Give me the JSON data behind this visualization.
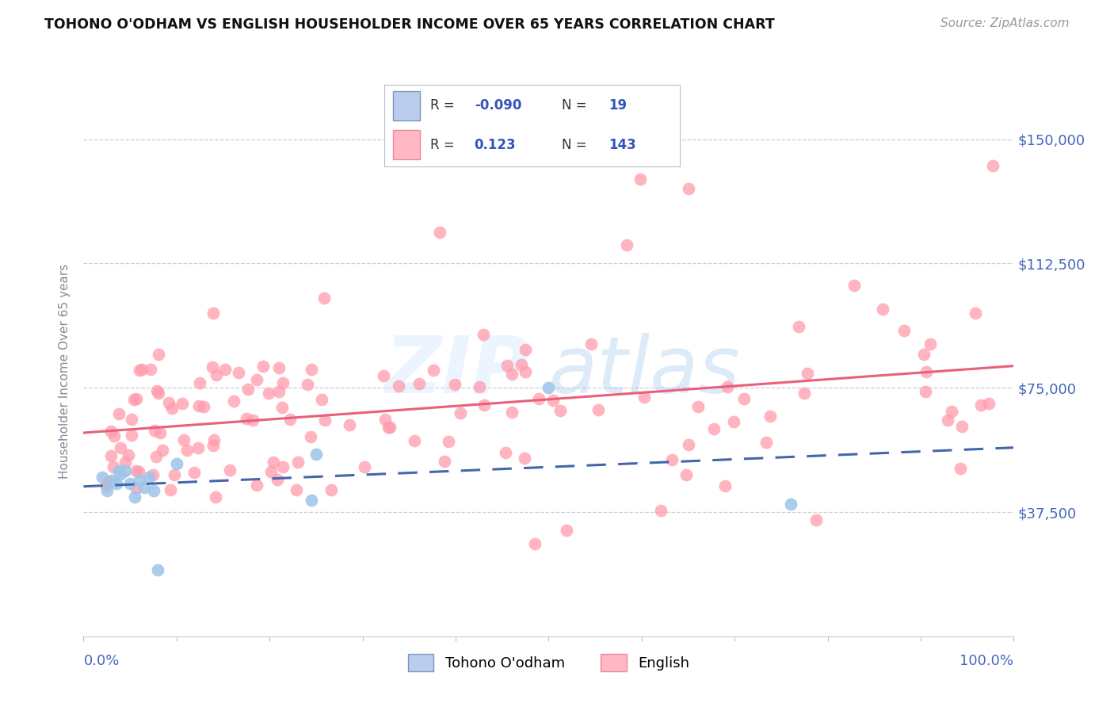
{
  "title": "TOHONO O'ODHAM VS ENGLISH HOUSEHOLDER INCOME OVER 65 YEARS CORRELATION CHART",
  "source": "Source: ZipAtlas.com",
  "ylabel": "Householder Income Over 65 years",
  "ytick_vals": [
    37500,
    75000,
    112500,
    150000
  ],
  "ytick_labels": [
    "$37,500",
    "$75,000",
    "$112,500",
    "$150,000"
  ],
  "color_blue_dot": "#9EC4E8",
  "color_blue_line": "#4466AA",
  "color_blue_patch": "#BBCCEE",
  "color_pink_dot": "#FF9BAB",
  "color_pink_line": "#E8607A",
  "color_pink_patch": "#FFB8C4",
  "color_grid": "#CCCCDD",
  "color_axis_text": "#4466BB",
  "color_ylabel": "#888899",
  "color_title": "#111111",
  "color_source": "#999999",
  "r_tohono": -0.09,
  "n_tohono": 19,
  "r_english": 0.123,
  "n_english": 143,
  "legend_text_color": "#333333",
  "legend_num_color": "#3355BB"
}
